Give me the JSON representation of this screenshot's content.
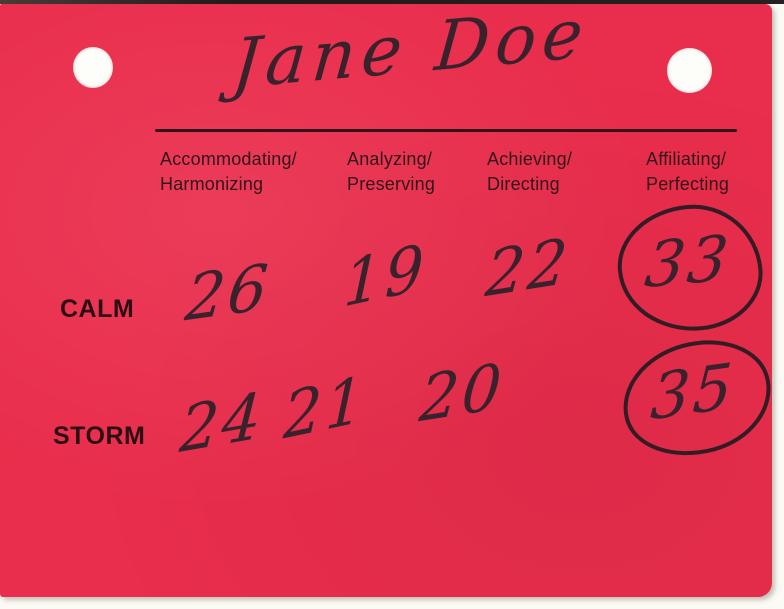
{
  "card": {
    "name": "Jane Doe",
    "columns": [
      {
        "line1": "Accommodating/",
        "line2": "Harmonizing"
      },
      {
        "line1": "Analyzing/",
        "line2": "Preserving"
      },
      {
        "line1": "Achieving/",
        "line2": "Directing"
      },
      {
        "line1": "Affiliating/",
        "line2": "Perfecting"
      }
    ],
    "rows": [
      {
        "label": "CALM",
        "values": [
          "26",
          "19",
          "22",
          "33"
        ],
        "circled_column_index": 3
      },
      {
        "label": "STORM",
        "values": [
          "24",
          "21",
          "20",
          "35"
        ],
        "circled_column_index": 3
      }
    ],
    "colors": {
      "card_red": "#e92d4c",
      "handwriting_ink": "#3a222c",
      "printed_text": "#321419",
      "hole_white": "#fdfdfa",
      "scan_background": "#fbfaf5"
    }
  }
}
